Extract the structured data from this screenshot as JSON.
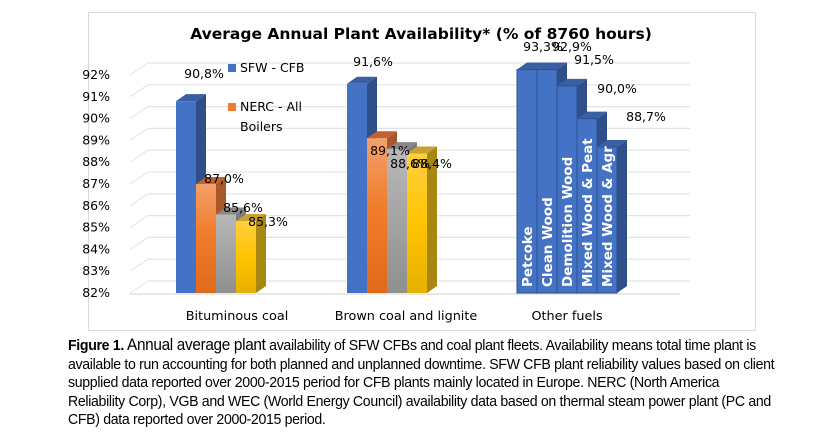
{
  "chart_data": {
    "type": "bar",
    "title": "Average Annual Plant Availability* (% of 8760 hours)",
    "xlabel": "",
    "ylabel": "",
    "ylim": [
      82,
      92
    ],
    "yticks": [
      "82%",
      "83%",
      "84%",
      "85%",
      "86%",
      "87%",
      "88%",
      "89%",
      "90%",
      "91%",
      "92%"
    ],
    "grid": true,
    "style": "3d-clustered-column",
    "legend": {
      "placement": "top-left-inside",
      "entries": [
        {
          "name": "SFW - CFB",
          "color": "#4472c4"
        },
        {
          "name": "NERC - All Boilers",
          "color": "#ed7d31"
        }
      ]
    },
    "categories": [
      "Bituminous coal",
      "Brown coal and lignite",
      "Other fuels"
    ],
    "groups": [
      {
        "category": "Bituminous coal",
        "bars": [
          {
            "series": "SFW - CFB",
            "value": 90.8,
            "label": "90,8%",
            "color": "#4472c4"
          },
          {
            "series": "NERC - All Boilers",
            "value": 87.0,
            "label": "87,0%",
            "color": "#ed7d31"
          },
          {
            "series": "VGB",
            "value": 85.6,
            "label": "85,6%",
            "color": "#a5a5a5"
          },
          {
            "series": "WEC",
            "value": 85.3,
            "label": "85,3%",
            "color": "#ffc000"
          }
        ]
      },
      {
        "category": "Brown coal and lignite",
        "bars": [
          {
            "series": "SFW - CFB",
            "value": 91.6,
            "label": "91,6%",
            "color": "#4472c4"
          },
          {
            "series": "NERC - All Boilers",
            "value": 89.1,
            "label": "89,1%",
            "color": "#ed7d31"
          },
          {
            "series": "VGB",
            "value": 88.6,
            "label": "88,6%",
            "color": "#a5a5a5"
          },
          {
            "series": "WEC",
            "value": 88.4,
            "label": "88,4%",
            "color": "#ffc000"
          }
        ]
      },
      {
        "category": "Other fuels",
        "bars": [
          {
            "series": "SFW - CFB",
            "fuel": "Petcoke",
            "value": 93.3,
            "label": "93,3%",
            "color": "#4472c4"
          },
          {
            "series": "SFW - CFB",
            "fuel": "Clean Wood",
            "value": 92.9,
            "label": "92,9%",
            "color": "#4472c4"
          },
          {
            "series": "SFW - CFB",
            "fuel": "Demolition Wood",
            "value": 91.5,
            "label": "91,5%",
            "color": "#4472c4"
          },
          {
            "series": "SFW - CFB",
            "fuel": "Mixed Wood & Peat",
            "value": 90.0,
            "label": "90,0%",
            "color": "#4472c4"
          },
          {
            "series": "SFW - CFB",
            "fuel": "Mixed Wood & Agr",
            "value": 88.7,
            "label": "88,7%",
            "color": "#4472c4"
          }
        ]
      }
    ]
  },
  "caption": {
    "figure_label": "Figure 1.",
    "lead": " Annual average plant",
    "text": " availability of SFW CFBs and coal plant fleets. Availability means total time plant is available to run accounting for both planned and unplanned downtime. SFW CFB plant reliability values based on client supplied data reported over 2000-2015 period for CFB plants mainly located in Europe. NERC (North America Reliability Corp), VGB and WEC (World Energy Council) availability data based on thermal steam power plant (PC and CFB) data reported over 2000-2015 period."
  }
}
